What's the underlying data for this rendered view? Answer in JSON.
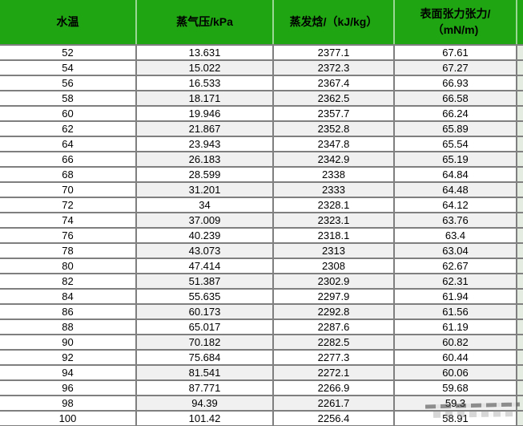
{
  "colors": {
    "header_bg": "#1fa412",
    "alt_row_bg": "#f0f0f0",
    "border": "#7f7f7f",
    "sliver_bg": "#e4ebe0",
    "header_text": "#000000",
    "body_text": "#000000"
  },
  "chart_data": {
    "type": "table",
    "title": "",
    "columns": [
      "水温",
      "蒸气压/kPa",
      "蒸发焓/（kJ/kg）",
      "表面张力张力/（mN/m)"
    ],
    "rows": [
      [
        "52",
        "13.631",
        "2377.1",
        "67.61"
      ],
      [
        "54",
        "15.022",
        "2372.3",
        "67.27"
      ],
      [
        "56",
        "16.533",
        "2367.4",
        "66.93"
      ],
      [
        "58",
        "18.171",
        "2362.5",
        "66.58"
      ],
      [
        "60",
        "19.946",
        "2357.7",
        "66.24"
      ],
      [
        "62",
        "21.867",
        "2352.8",
        "65.89"
      ],
      [
        "64",
        "23.943",
        "2347.8",
        "65.54"
      ],
      [
        "66",
        "26.183",
        "2342.9",
        "65.19"
      ],
      [
        "68",
        "28.599",
        "2338",
        "64.84"
      ],
      [
        "70",
        "31.201",
        "2333",
        "64.48"
      ],
      [
        "72",
        "34",
        "2328.1",
        "64.12"
      ],
      [
        "74",
        "37.009",
        "2323.1",
        "63.76"
      ],
      [
        "76",
        "40.239",
        "2318.1",
        "63.4"
      ],
      [
        "78",
        "43.073",
        "2313",
        "63.04"
      ],
      [
        "80",
        "47.414",
        "2308",
        "62.67"
      ],
      [
        "82",
        "51.387",
        "2302.9",
        "62.31"
      ],
      [
        "84",
        "55.635",
        "2297.9",
        "61.94"
      ],
      [
        "86",
        "60.173",
        "2292.8",
        "61.56"
      ],
      [
        "88",
        "65.017",
        "2287.6",
        "61.19"
      ],
      [
        "90",
        "70.182",
        "2282.5",
        "60.82"
      ],
      [
        "92",
        "75.684",
        "2277.3",
        "60.44"
      ],
      [
        "94",
        "81.541",
        "2272.1",
        "60.06"
      ],
      [
        "96",
        "87.771",
        "2266.9",
        "59.68"
      ],
      [
        "98",
        "94.39",
        "2261.7",
        "59.3"
      ],
      [
        "100",
        "101.42",
        "2256.4",
        "58.91"
      ]
    ]
  }
}
